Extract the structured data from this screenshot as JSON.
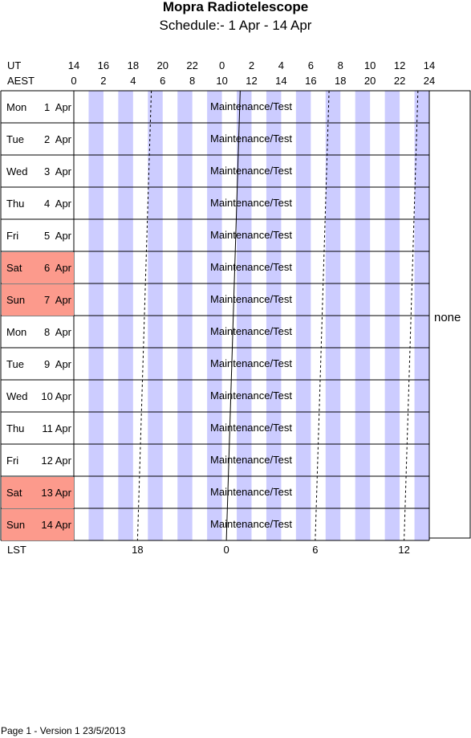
{
  "title": "Mopra Radiotelescope",
  "subtitle": "Schedule:- 1  Apr - 14 Apr",
  "chart_data": {
    "type": "table",
    "row_labels": {
      "ut": "UT",
      "aest": "AEST",
      "lst": "LST"
    },
    "ut_ticks": [
      "14",
      "16",
      "18",
      "20",
      "22",
      "0",
      "2",
      "4",
      "6",
      "8",
      "10",
      "12",
      "14"
    ],
    "aest_ticks": [
      "0",
      "2",
      "4",
      "6",
      "8",
      "10",
      "12",
      "14",
      "16",
      "18",
      "20",
      "22",
      "24"
    ],
    "lst_ticks": [
      {
        "label": "18",
        "aest_hour": 4.3
      },
      {
        "label": "0",
        "aest_hour": 10.3
      },
      {
        "label": "6",
        "aest_hour": 16.3
      },
      {
        "label": "12",
        "aest_hour": 22.3
      }
    ],
    "days": [
      {
        "day": "Mon",
        "date": "1  Apr",
        "weekend": false,
        "activity": "Maintenance/Test"
      },
      {
        "day": "Tue",
        "date": "2  Apr",
        "weekend": false,
        "activity": "Maintenance/Test"
      },
      {
        "day": "Wed",
        "date": "3  Apr",
        "weekend": false,
        "activity": "Maintenance/Test"
      },
      {
        "day": "Thu",
        "date": "4  Apr",
        "weekend": false,
        "activity": "Maintenance/Test"
      },
      {
        "day": "Fri",
        "date": "5  Apr",
        "weekend": false,
        "activity": "Maintenance/Test"
      },
      {
        "day": "Sat",
        "date": "6  Apr",
        "weekend": true,
        "activity": "Maintenance/Test"
      },
      {
        "day": "Sun",
        "date": "7  Apr",
        "weekend": true,
        "activity": "Maintenance/Test"
      },
      {
        "day": "Mon",
        "date": "8  Apr",
        "weekend": false,
        "activity": "Maintenance/Test"
      },
      {
        "day": "Tue",
        "date": "9  Apr",
        "weekend": false,
        "activity": "Maintenance/Test"
      },
      {
        "day": "Wed",
        "date": "10 Apr",
        "weekend": false,
        "activity": "Maintenance/Test"
      },
      {
        "day": "Thu",
        "date": "11 Apr",
        "weekend": false,
        "activity": "Maintenance/Test"
      },
      {
        "day": "Fri",
        "date": "12 Apr",
        "weekend": false,
        "activity": "Maintenance/Test"
      },
      {
        "day": "Sat",
        "date": "13 Apr",
        "weekend": true,
        "activity": "Maintenance/Test"
      },
      {
        "day": "Sun",
        "date": "14 Apr",
        "weekend": true,
        "activity": "Maintenance/Test"
      }
    ],
    "side_label": "none",
    "colors": {
      "stripe": "#ccccff",
      "weekend": "#fc9a8c",
      "grid": "#000000"
    }
  },
  "footer": "Page 1 - Version 1  23/5/2013"
}
